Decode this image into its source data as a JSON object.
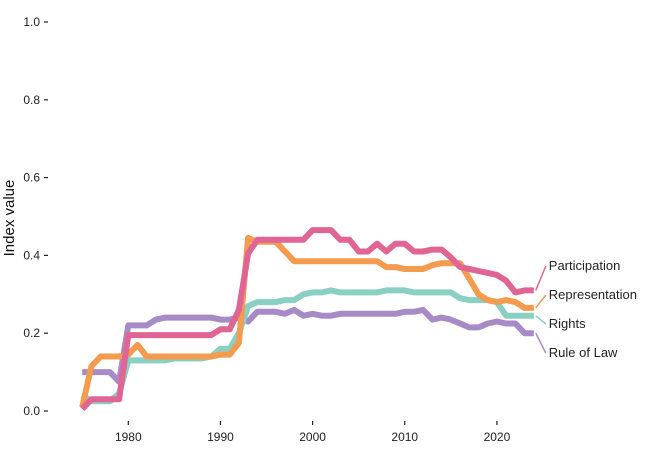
{
  "chart_data": {
    "type": "line",
    "title": "",
    "xlabel": "",
    "ylabel": "Index value",
    "xlim": [
      1974,
      2025
    ],
    "ylim": [
      0,
      1.0
    ],
    "x_ticks": [
      1980,
      1990,
      2000,
      2010,
      2020
    ],
    "y_ticks": [
      0.0,
      0.2,
      0.4,
      0.6,
      0.8,
      1.0
    ],
    "y_tick_labels": [
      "0.0",
      "0.2",
      "0.4",
      "0.6",
      "0.8",
      "1.0"
    ],
    "grid": false,
    "legend": "direct labels at line ends (right)",
    "x": [
      1975,
      1976,
      1977,
      1978,
      1979,
      1980,
      1981,
      1982,
      1983,
      1984,
      1985,
      1986,
      1987,
      1988,
      1989,
      1990,
      1991,
      1992,
      1993,
      1994,
      1995,
      1996,
      1997,
      1998,
      1999,
      2000,
      2001,
      2002,
      2003,
      2004,
      2005,
      2006,
      2007,
      2008,
      2009,
      2010,
      2011,
      2012,
      2013,
      2014,
      2015,
      2016,
      2017,
      2018,
      2019,
      2020,
      2021,
      2022,
      2023,
      2024
    ],
    "series": [
      {
        "name": "Participation",
        "color": "#e06594",
        "values": [
          0.005,
          0.03,
          0.03,
          0.03,
          0.03,
          0.195,
          0.195,
          0.195,
          0.195,
          0.195,
          0.195,
          0.195,
          0.195,
          0.195,
          0.195,
          0.21,
          0.21,
          0.26,
          0.405,
          0.44,
          0.44,
          0.44,
          0.44,
          0.44,
          0.44,
          0.465,
          0.465,
          0.465,
          0.44,
          0.44,
          0.41,
          0.41,
          0.43,
          0.41,
          0.43,
          0.43,
          0.41,
          0.41,
          0.415,
          0.415,
          0.395,
          0.37,
          0.365,
          0.36,
          0.355,
          0.35,
          0.335,
          0.305,
          0.31,
          0.31
        ]
      },
      {
        "name": "Representation",
        "color": "#f39b4f",
        "values": [
          0.01,
          0.115,
          0.14,
          0.14,
          0.14,
          0.145,
          0.17,
          0.14,
          0.14,
          0.14,
          0.14,
          0.14,
          0.14,
          0.14,
          0.14,
          0.145,
          0.145,
          0.175,
          0.445,
          0.435,
          0.435,
          0.435,
          0.41,
          0.385,
          0.385,
          0.385,
          0.385,
          0.385,
          0.385,
          0.385,
          0.385,
          0.385,
          0.385,
          0.37,
          0.37,
          0.365,
          0.365,
          0.365,
          0.375,
          0.38,
          0.38,
          0.38,
          0.34,
          0.3,
          0.285,
          0.28,
          0.285,
          0.28,
          0.265,
          0.265
        ]
      },
      {
        "name": "Rights",
        "color": "#89cfc2",
        "values": [
          0.04,
          0.025,
          0.025,
          0.025,
          0.045,
          0.13,
          0.13,
          0.13,
          0.13,
          0.13,
          0.135,
          0.135,
          0.135,
          0.135,
          0.14,
          0.16,
          0.16,
          0.2,
          0.27,
          0.28,
          0.28,
          0.28,
          0.285,
          0.285,
          0.3,
          0.305,
          0.305,
          0.31,
          0.305,
          0.305,
          0.305,
          0.305,
          0.305,
          0.31,
          0.31,
          0.31,
          0.305,
          0.305,
          0.305,
          0.305,
          0.305,
          0.29,
          0.285,
          0.285,
          0.285,
          0.28,
          0.245,
          0.245,
          0.245,
          0.245
        ]
      },
      {
        "name": "Rule of Law",
        "color": "#a68bc6",
        "values": [
          0.1,
          0.1,
          0.1,
          0.1,
          0.075,
          0.22,
          0.22,
          0.22,
          0.235,
          0.24,
          0.24,
          0.24,
          0.24,
          0.24,
          0.24,
          0.235,
          0.235,
          0.24,
          0.23,
          0.255,
          0.255,
          0.255,
          0.25,
          0.26,
          0.245,
          0.25,
          0.245,
          0.245,
          0.25,
          0.25,
          0.25,
          0.25,
          0.25,
          0.25,
          0.25,
          0.255,
          0.255,
          0.26,
          0.235,
          0.24,
          0.235,
          0.225,
          0.215,
          0.215,
          0.225,
          0.23,
          0.225,
          0.225,
          0.2,
          0.2
        ]
      }
    ]
  }
}
